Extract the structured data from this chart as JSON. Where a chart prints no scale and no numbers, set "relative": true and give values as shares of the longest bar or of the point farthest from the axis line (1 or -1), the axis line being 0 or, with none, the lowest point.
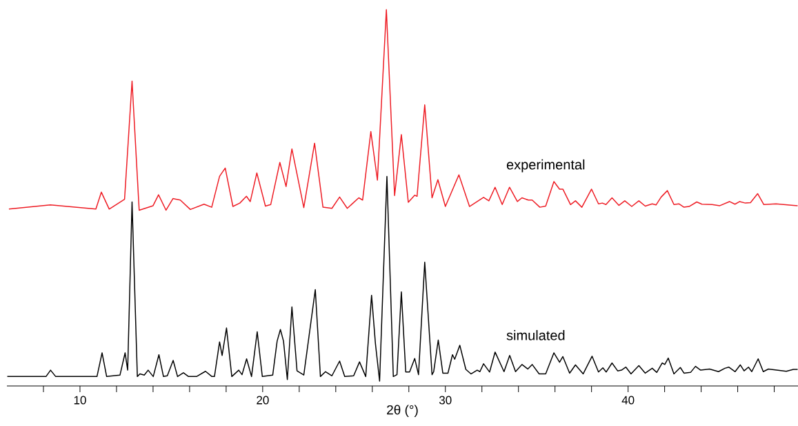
{
  "chart_data": {
    "type": "line",
    "relative": true,
    "xlabel": "2θ (°)",
    "xlim": [
      6.0,
      49.3
    ],
    "xticks": [
      {
        "value": 8,
        "label": null
      },
      10,
      {
        "value": 12,
        "label": null
      },
      {
        "value": 14,
        "label": null
      },
      {
        "value": 16,
        "label": null
      },
      {
        "value": 18,
        "label": null
      },
      20,
      {
        "value": 22,
        "label": null
      },
      {
        "value": 24,
        "label": null
      },
      {
        "value": 26,
        "label": null
      },
      {
        "value": 28,
        "label": null
      },
      30,
      {
        "value": 32,
        "label": null
      },
      {
        "value": 34,
        "label": null
      },
      {
        "value": 36,
        "label": null
      },
      {
        "value": 38,
        "label": null
      },
      40,
      {
        "value": 42,
        "label": null
      },
      {
        "value": 44,
        "label": null
      },
      {
        "value": 46,
        "label": null
      },
      {
        "value": 48,
        "label": null
      }
    ],
    "series": [
      {
        "name": "experimental",
        "color": "#ee1c24",
        "x": [
          6.11,
          8.38,
          10.87,
          11.17,
          11.6,
          12.44,
          12.85,
          13.24,
          14.0,
          14.3,
          14.71,
          15.09,
          15.49,
          16.04,
          16.79,
          17.21,
          17.64,
          17.95,
          18.37,
          18.75,
          19.11,
          19.32,
          19.68,
          20.15,
          20.44,
          20.94,
          21.28,
          21.6,
          22.25,
          22.84,
          23.3,
          23.79,
          24.21,
          24.63,
          25.26,
          25.47,
          25.92,
          26.28,
          26.77,
          27.22,
          27.59,
          27.97,
          28.32,
          28.45,
          28.87,
          29.27,
          29.59,
          30.0,
          30.74,
          31.32,
          32.09,
          32.38,
          32.72,
          33.11,
          33.51,
          33.94,
          34.19,
          34.54,
          34.75,
          35.17,
          35.49,
          35.94,
          36.25,
          36.43,
          36.85,
          37.12,
          37.47,
          38.0,
          38.38,
          38.59,
          38.79,
          39.12,
          39.5,
          39.82,
          40.2,
          40.59,
          40.94,
          41.32,
          41.53,
          41.81,
          42.15,
          42.51,
          42.78,
          43.06,
          43.34,
          43.76,
          44.04,
          44.6,
          45.02,
          45.55,
          45.85,
          46.11,
          46.42,
          46.7,
          47.09,
          47.43,
          48.1,
          49.05,
          49.28
        ],
        "values": [
          0.47,
          0.481,
          0.47,
          0.515,
          0.47,
          0.496,
          0.81,
          0.467,
          0.479,
          0.508,
          0.467,
          0.498,
          0.494,
          0.469,
          0.483,
          0.475,
          0.557,
          0.579,
          0.477,
          0.486,
          0.504,
          0.49,
          0.566,
          0.478,
          0.482,
          0.594,
          0.53,
          0.63,
          0.474,
          0.645,
          0.475,
          0.472,
          0.502,
          0.472,
          0.5,
          0.494,
          0.676,
          0.547,
          1.0,
          0.506,
          0.668,
          0.488,
          0.507,
          0.504,
          0.747,
          0.5,
          0.548,
          0.477,
          0.561,
          0.477,
          0.501,
          0.492,
          0.528,
          0.482,
          0.528,
          0.49,
          0.5,
          0.494,
          0.494,
          0.475,
          0.478,
          0.543,
          0.523,
          0.523,
          0.482,
          0.492,
          0.475,
          0.523,
          0.484,
          0.486,
          0.482,
          0.5,
          0.48,
          0.492,
          0.477,
          0.492,
          0.478,
          0.484,
          0.481,
          0.502,
          0.519,
          0.482,
          0.484,
          0.475,
          0.477,
          0.489,
          0.483,
          0.482,
          0.479,
          0.49,
          0.483,
          0.49,
          0.486,
          0.487,
          0.511,
          0.482,
          0.484,
          0.48,
          0.479
        ]
      },
      {
        "name": "simulated",
        "color": "#000000",
        "x": [
          6.02,
          8.14,
          8.39,
          8.67,
          10.93,
          11.21,
          11.46,
          12.19,
          12.47,
          12.61,
          12.85,
          13.14,
          13.28,
          13.52,
          13.73,
          14.01,
          14.32,
          14.57,
          14.78,
          15.1,
          15.34,
          15.66,
          15.94,
          16.38,
          16.87,
          17.22,
          17.36,
          17.64,
          17.78,
          18.02,
          18.31,
          18.69,
          18.87,
          19.12,
          19.39,
          19.7,
          19.98,
          20.55,
          20.79,
          20.97,
          21.14,
          21.35,
          21.6,
          21.88,
          22.25,
          22.88,
          23.16,
          23.44,
          23.79,
          24.21,
          24.49,
          24.98,
          25.3,
          25.64,
          25.96,
          26.17,
          26.4,
          26.8,
          27.15,
          27.35,
          27.59,
          27.83,
          28.04,
          28.32,
          28.53,
          28.87,
          29.27,
          29.36,
          29.61,
          29.86,
          30.14,
          30.39,
          30.51,
          30.79,
          31.12,
          31.4,
          31.74,
          31.89,
          32.09,
          32.42,
          32.72,
          33.21,
          33.52,
          33.84,
          34.19,
          34.51,
          34.75,
          35.13,
          35.49,
          35.94,
          36.25,
          36.43,
          36.8,
          37.12,
          37.54,
          38.03,
          38.38,
          38.62,
          38.8,
          39.12,
          39.43,
          39.64,
          39.88,
          40.16,
          40.59,
          40.94,
          41.32,
          41.57,
          41.87,
          42.01,
          42.2,
          42.51,
          42.86,
          43.06,
          43.42,
          43.69,
          43.97,
          44.46,
          44.95,
          45.3,
          45.51,
          45.86,
          46.14,
          46.35,
          46.59,
          46.77,
          47.12,
          47.4,
          47.68,
          48.66,
          49.05,
          49.28
        ],
        "values": [
          0.025,
          0.025,
          0.042,
          0.025,
          0.025,
          0.088,
          0.025,
          0.029,
          0.088,
          0.042,
          0.489,
          0.025,
          0.032,
          0.029,
          0.042,
          0.025,
          0.083,
          0.025,
          0.027,
          0.068,
          0.025,
          0.035,
          0.025,
          0.025,
          0.039,
          0.025,
          0.025,
          0.117,
          0.081,
          0.154,
          0.025,
          0.042,
          0.03,
          0.072,
          0.025,
          0.144,
          0.025,
          0.029,
          0.119,
          0.15,
          0.119,
          0.017,
          0.21,
          0.04,
          0.029,
          0.256,
          0.025,
          0.038,
          0.027,
          0.066,
          0.025,
          0.027,
          0.064,
          0.025,
          0.241,
          0.113,
          0.013,
          0.557,
          0.025,
          0.03,
          0.25,
          0.037,
          0.037,
          0.073,
          0.03,
          0.329,
          0.03,
          0.038,
          0.122,
          0.034,
          0.034,
          0.083,
          0.071,
          0.108,
          0.044,
          0.032,
          0.042,
          0.038,
          0.059,
          0.037,
          0.09,
          0.038,
          0.081,
          0.038,
          0.057,
          0.045,
          0.057,
          0.032,
          0.032,
          0.088,
          0.063,
          0.078,
          0.034,
          0.056,
          0.032,
          0.079,
          0.037,
          0.048,
          0.037,
          0.061,
          0.04,
          0.042,
          0.05,
          0.032,
          0.054,
          0.034,
          0.047,
          0.036,
          0.061,
          0.057,
          0.074,
          0.032,
          0.049,
          0.034,
          0.036,
          0.052,
          0.042,
          0.045,
          0.038,
          0.047,
          0.05,
          0.038,
          0.056,
          0.04,
          0.05,
          0.038,
          0.072,
          0.038,
          0.045,
          0.039,
          0.044,
          0.044
        ]
      }
    ]
  }
}
